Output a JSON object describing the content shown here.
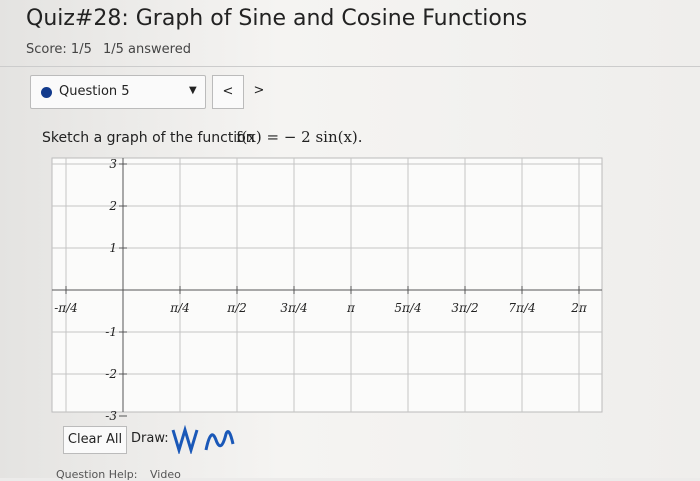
{
  "header": {
    "title": "Quiz#28: Graph of Sine and Cosine Functions",
    "score": "Score: 1/5",
    "answered": "1/5 answered"
  },
  "question_nav": {
    "label": "Question 5",
    "prev": "<",
    "next": ">"
  },
  "prompt": {
    "text": "Sketch a graph of the function",
    "formula": "f(x) = − 2 sin(x)."
  },
  "graph": {
    "x_labels": [
      "-π/4",
      "π/4",
      "π/2",
      "3π/4",
      "π",
      "5π/4",
      "3π/2",
      "7π/4",
      "2π"
    ],
    "y_labels": [
      "3",
      "2",
      "1",
      "-1",
      "-2",
      "-3"
    ]
  },
  "toolbar": {
    "clear": "Clear All",
    "draw": "Draw:"
  },
  "footer": {
    "help": "Question Help:",
    "video": "Video"
  }
}
